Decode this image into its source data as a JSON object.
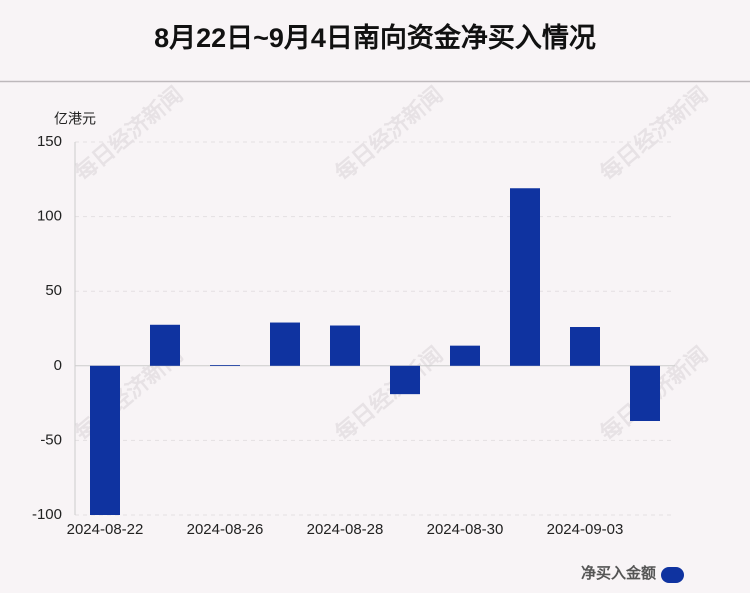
{
  "chart_data": {
    "type": "bar",
    "title": "8月22日~9月4日南向资金净买入情况",
    "y_label": "亿港元",
    "watermark": "每日经济新闻",
    "categories": [
      "2024-08-22",
      null,
      "2024-08-26",
      null,
      "2024-08-28",
      null,
      "2024-08-30",
      null,
      "2024-09-03",
      null
    ],
    "series": [
      {
        "name": "净买入金额",
        "color": "#0f33a0",
        "values": [
          -100,
          27.5,
          0.5,
          29,
          27,
          -19,
          13.5,
          119,
          26,
          -37
        ]
      }
    ],
    "ylim": [
      -100,
      150
    ],
    "yticks": [
      -100,
      -50,
      0,
      50,
      100,
      150
    ],
    "grid": true,
    "legend": "bottom-right"
  }
}
